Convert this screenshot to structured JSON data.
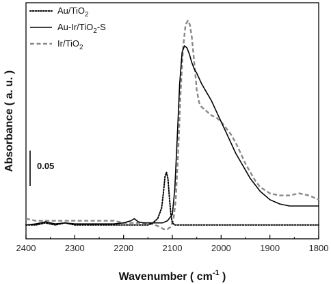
{
  "chart_data": {
    "type": "line",
    "xlabel": "Wavenumber ( cm-1 )",
    "xlabel_parts": {
      "main": "Wavenumber ( cm",
      "sup": "-1",
      "end": " )"
    },
    "ylabel": "Absorbance ( a. u. )",
    "xlim": [
      2400,
      1800
    ],
    "x_reversed": true,
    "ylim": [
      0,
      1
    ],
    "y_ticks_shown": false,
    "x_ticks": [
      2400,
      2300,
      2200,
      2100,
      2000,
      1900,
      1800
    ],
    "x_tick_labels": [
      "2400",
      "2300",
      "2200",
      "2100",
      "2000",
      "1900",
      "1800"
    ],
    "scale_bar": {
      "label": "0.05",
      "value": 0.05
    },
    "legend": {
      "placement": "top-left"
    },
    "series": [
      {
        "name": "Au/TiO2",
        "name_parts": {
          "a": "Au/TiO",
          "sub": "2",
          "b": ""
        },
        "style": "dotted",
        "color": "#000000",
        "x": [
          2400,
          2380,
          2360,
          2340,
          2320,
          2300,
          2280,
          2260,
          2240,
          2220,
          2200,
          2185,
          2175,
          2165,
          2150,
          2140,
          2130,
          2122,
          2118,
          2115,
          2112,
          2109,
          2106,
          2103,
          2100,
          2095,
          2090,
          2080,
          2060,
          2040,
          2020,
          2000,
          1980,
          1960,
          1940,
          1920,
          1900,
          1880,
          1860,
          1840,
          1820,
          1800
        ],
        "y": [
          0.03,
          0.03,
          0.04,
          0.03,
          0.04,
          0.03,
          0.03,
          0.03,
          0.03,
          0.03,
          0.03,
          0.03,
          0.03,
          0.03,
          0.03,
          0.04,
          0.06,
          0.11,
          0.19,
          0.26,
          0.28,
          0.25,
          0.16,
          0.08,
          0.04,
          0.03,
          0.03,
          0.03,
          0.03,
          0.03,
          0.03,
          0.03,
          0.03,
          0.03,
          0.03,
          0.03,
          0.03,
          0.03,
          0.03,
          0.03,
          0.03,
          0.03
        ]
      },
      {
        "name": "Au-Ir/TiO2-S",
        "name_parts": {
          "a": "Au-Ir/TiO",
          "sub": "2",
          "b": "-S"
        },
        "style": "solid",
        "color": "#000000",
        "x": [
          2400,
          2380,
          2360,
          2340,
          2320,
          2300,
          2280,
          2260,
          2240,
          2220,
          2200,
          2185,
          2178,
          2170,
          2160,
          2150,
          2140,
          2130,
          2120,
          2110,
          2100,
          2095,
          2090,
          2085,
          2080,
          2075,
          2070,
          2065,
          2060,
          2055,
          2050,
          2040,
          2030,
          2020,
          2010,
          2000,
          1990,
          1980,
          1970,
          1960,
          1950,
          1940,
          1930,
          1920,
          1910,
          1900,
          1880,
          1860,
          1840,
          1820,
          1800
        ],
        "y": [
          0.03,
          0.035,
          0.045,
          0.035,
          0.04,
          0.035,
          0.035,
          0.035,
          0.035,
          0.035,
          0.04,
          0.05,
          0.06,
          0.045,
          0.04,
          0.04,
          0.04,
          0.04,
          0.04,
          0.05,
          0.08,
          0.2,
          0.44,
          0.7,
          0.85,
          0.88,
          0.87,
          0.84,
          0.8,
          0.77,
          0.75,
          0.7,
          0.66,
          0.62,
          0.57,
          0.52,
          0.47,
          0.42,
          0.37,
          0.33,
          0.29,
          0.25,
          0.22,
          0.19,
          0.17,
          0.15,
          0.13,
          0.12,
          0.12,
          0.12,
          0.12
        ]
      },
      {
        "name": "Ir/TiO2",
        "name_parts": {
          "a": "Ir/TiO",
          "sub": "2",
          "b": ""
        },
        "style": "dashed",
        "color": "#888888",
        "x": [
          2400,
          2380,
          2360,
          2340,
          2320,
          2300,
          2280,
          2260,
          2240,
          2220,
          2200,
          2180,
          2160,
          2145,
          2135,
          2125,
          2118,
          2110,
          2104,
          2098,
          2093,
          2088,
          2083,
          2078,
          2073,
          2068,
          2064,
          2060,
          2055,
          2050,
          2045,
          2040,
          2030,
          2020,
          2010,
          2000,
          1990,
          1980,
          1970,
          1960,
          1950,
          1940,
          1930,
          1920,
          1900,
          1880,
          1860,
          1840,
          1820,
          1800
        ],
        "y": [
          0.06,
          0.05,
          0.05,
          0.05,
          0.05,
          0.05,
          0.05,
          0.05,
          0.05,
          0.05,
          0.04,
          0.04,
          0.04,
          0.035,
          0.03,
          0.02,
          0.01,
          0.01,
          0.02,
          0.05,
          0.15,
          0.38,
          0.66,
          0.87,
          0.98,
          1.0,
          0.98,
          0.92,
          0.8,
          0.67,
          0.61,
          0.59,
          0.57,
          0.55,
          0.54,
          0.52,
          0.49,
          0.46,
          0.42,
          0.37,
          0.32,
          0.28,
          0.24,
          0.21,
          0.18,
          0.17,
          0.17,
          0.18,
          0.17,
          0.15
        ]
      }
    ]
  }
}
